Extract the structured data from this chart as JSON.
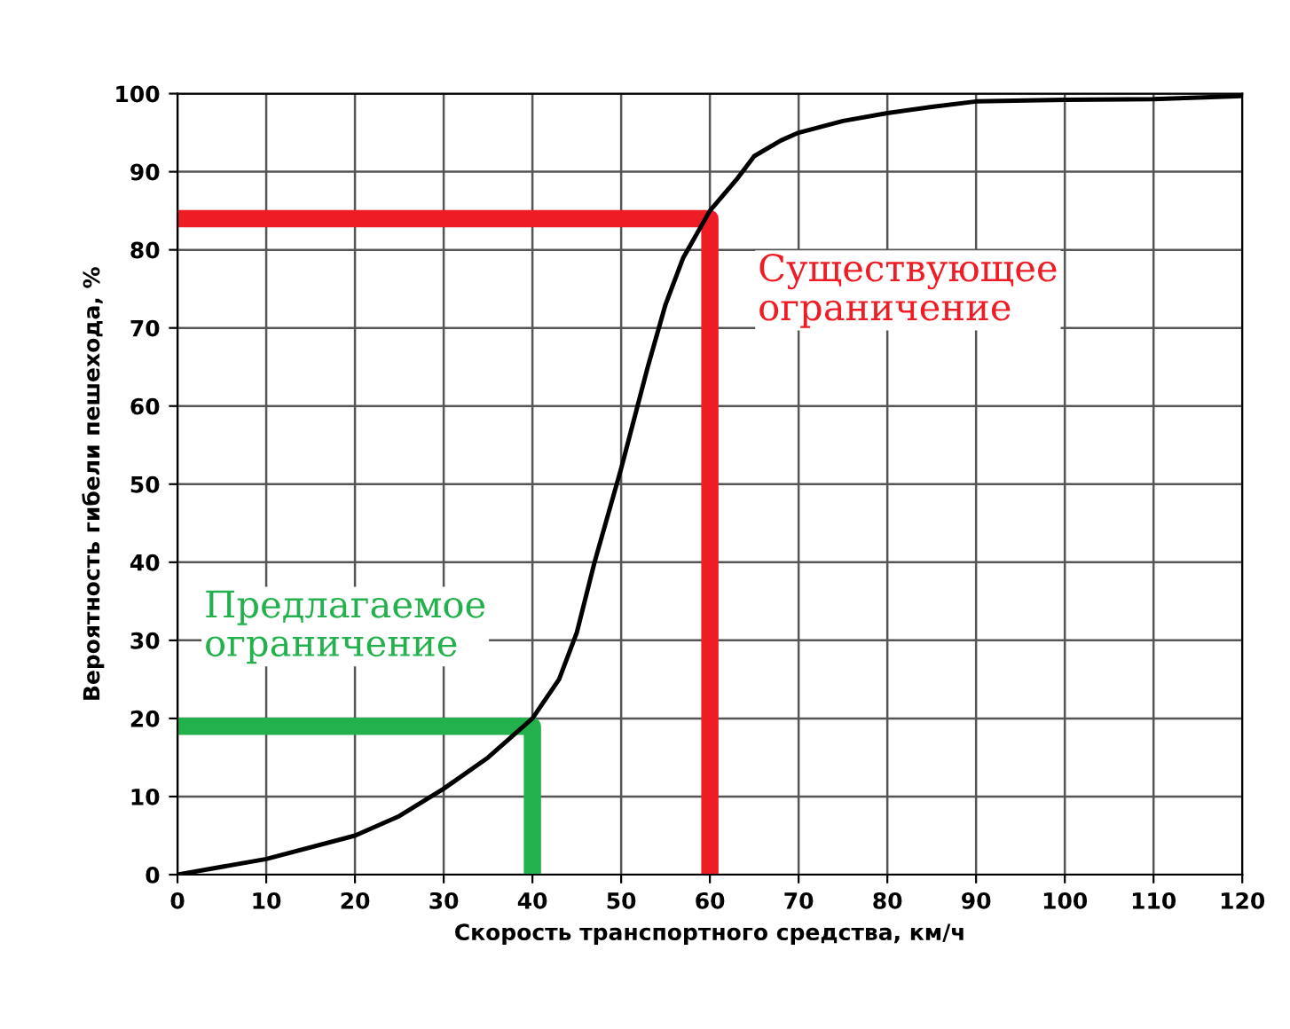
{
  "chart_data": {
    "type": "line",
    "xlabel": "Скорость транспортного средства, км/ч",
    "ylabel": "Вероятность гибели пешехода, %",
    "xlim": [
      0,
      120
    ],
    "ylim": [
      0,
      100
    ],
    "xticks": [
      0,
      10,
      20,
      30,
      40,
      50,
      60,
      70,
      80,
      90,
      100,
      110,
      120
    ],
    "yticks": [
      0,
      10,
      20,
      30,
      40,
      50,
      60,
      70,
      80,
      90,
      100
    ],
    "grid": true,
    "marker": "none",
    "line_style": "solid",
    "series": [
      {
        "color": "#000000",
        "x": [
          0,
          10,
          20,
          25,
          30,
          35,
          40,
          43,
          45,
          47,
          50,
          53,
          55,
          57,
          60,
          63,
          65,
          68,
          70,
          75,
          80,
          85,
          90,
          100,
          110,
          120
        ],
        "values": [
          0,
          2,
          5,
          7.5,
          11,
          15,
          20,
          25,
          31,
          40,
          52,
          65,
          73,
          79,
          85,
          89,
          92,
          94,
          95,
          96.5,
          97.5,
          98.3,
          99,
          99.2,
          99.3,
          99.7
        ]
      },
      {
        "color": "#ee1c25",
        "x": [
          0,
          60,
          60
        ],
        "values": [
          84,
          84,
          0
        ]
      },
      {
        "color": "#22b14c",
        "x": [
          0,
          40,
          40
        ],
        "values": [
          19,
          19,
          0
        ]
      }
    ],
    "annotations": [
      "Существующее\nограничение",
      "Предлагаемое\nограничение"
    ]
  }
}
